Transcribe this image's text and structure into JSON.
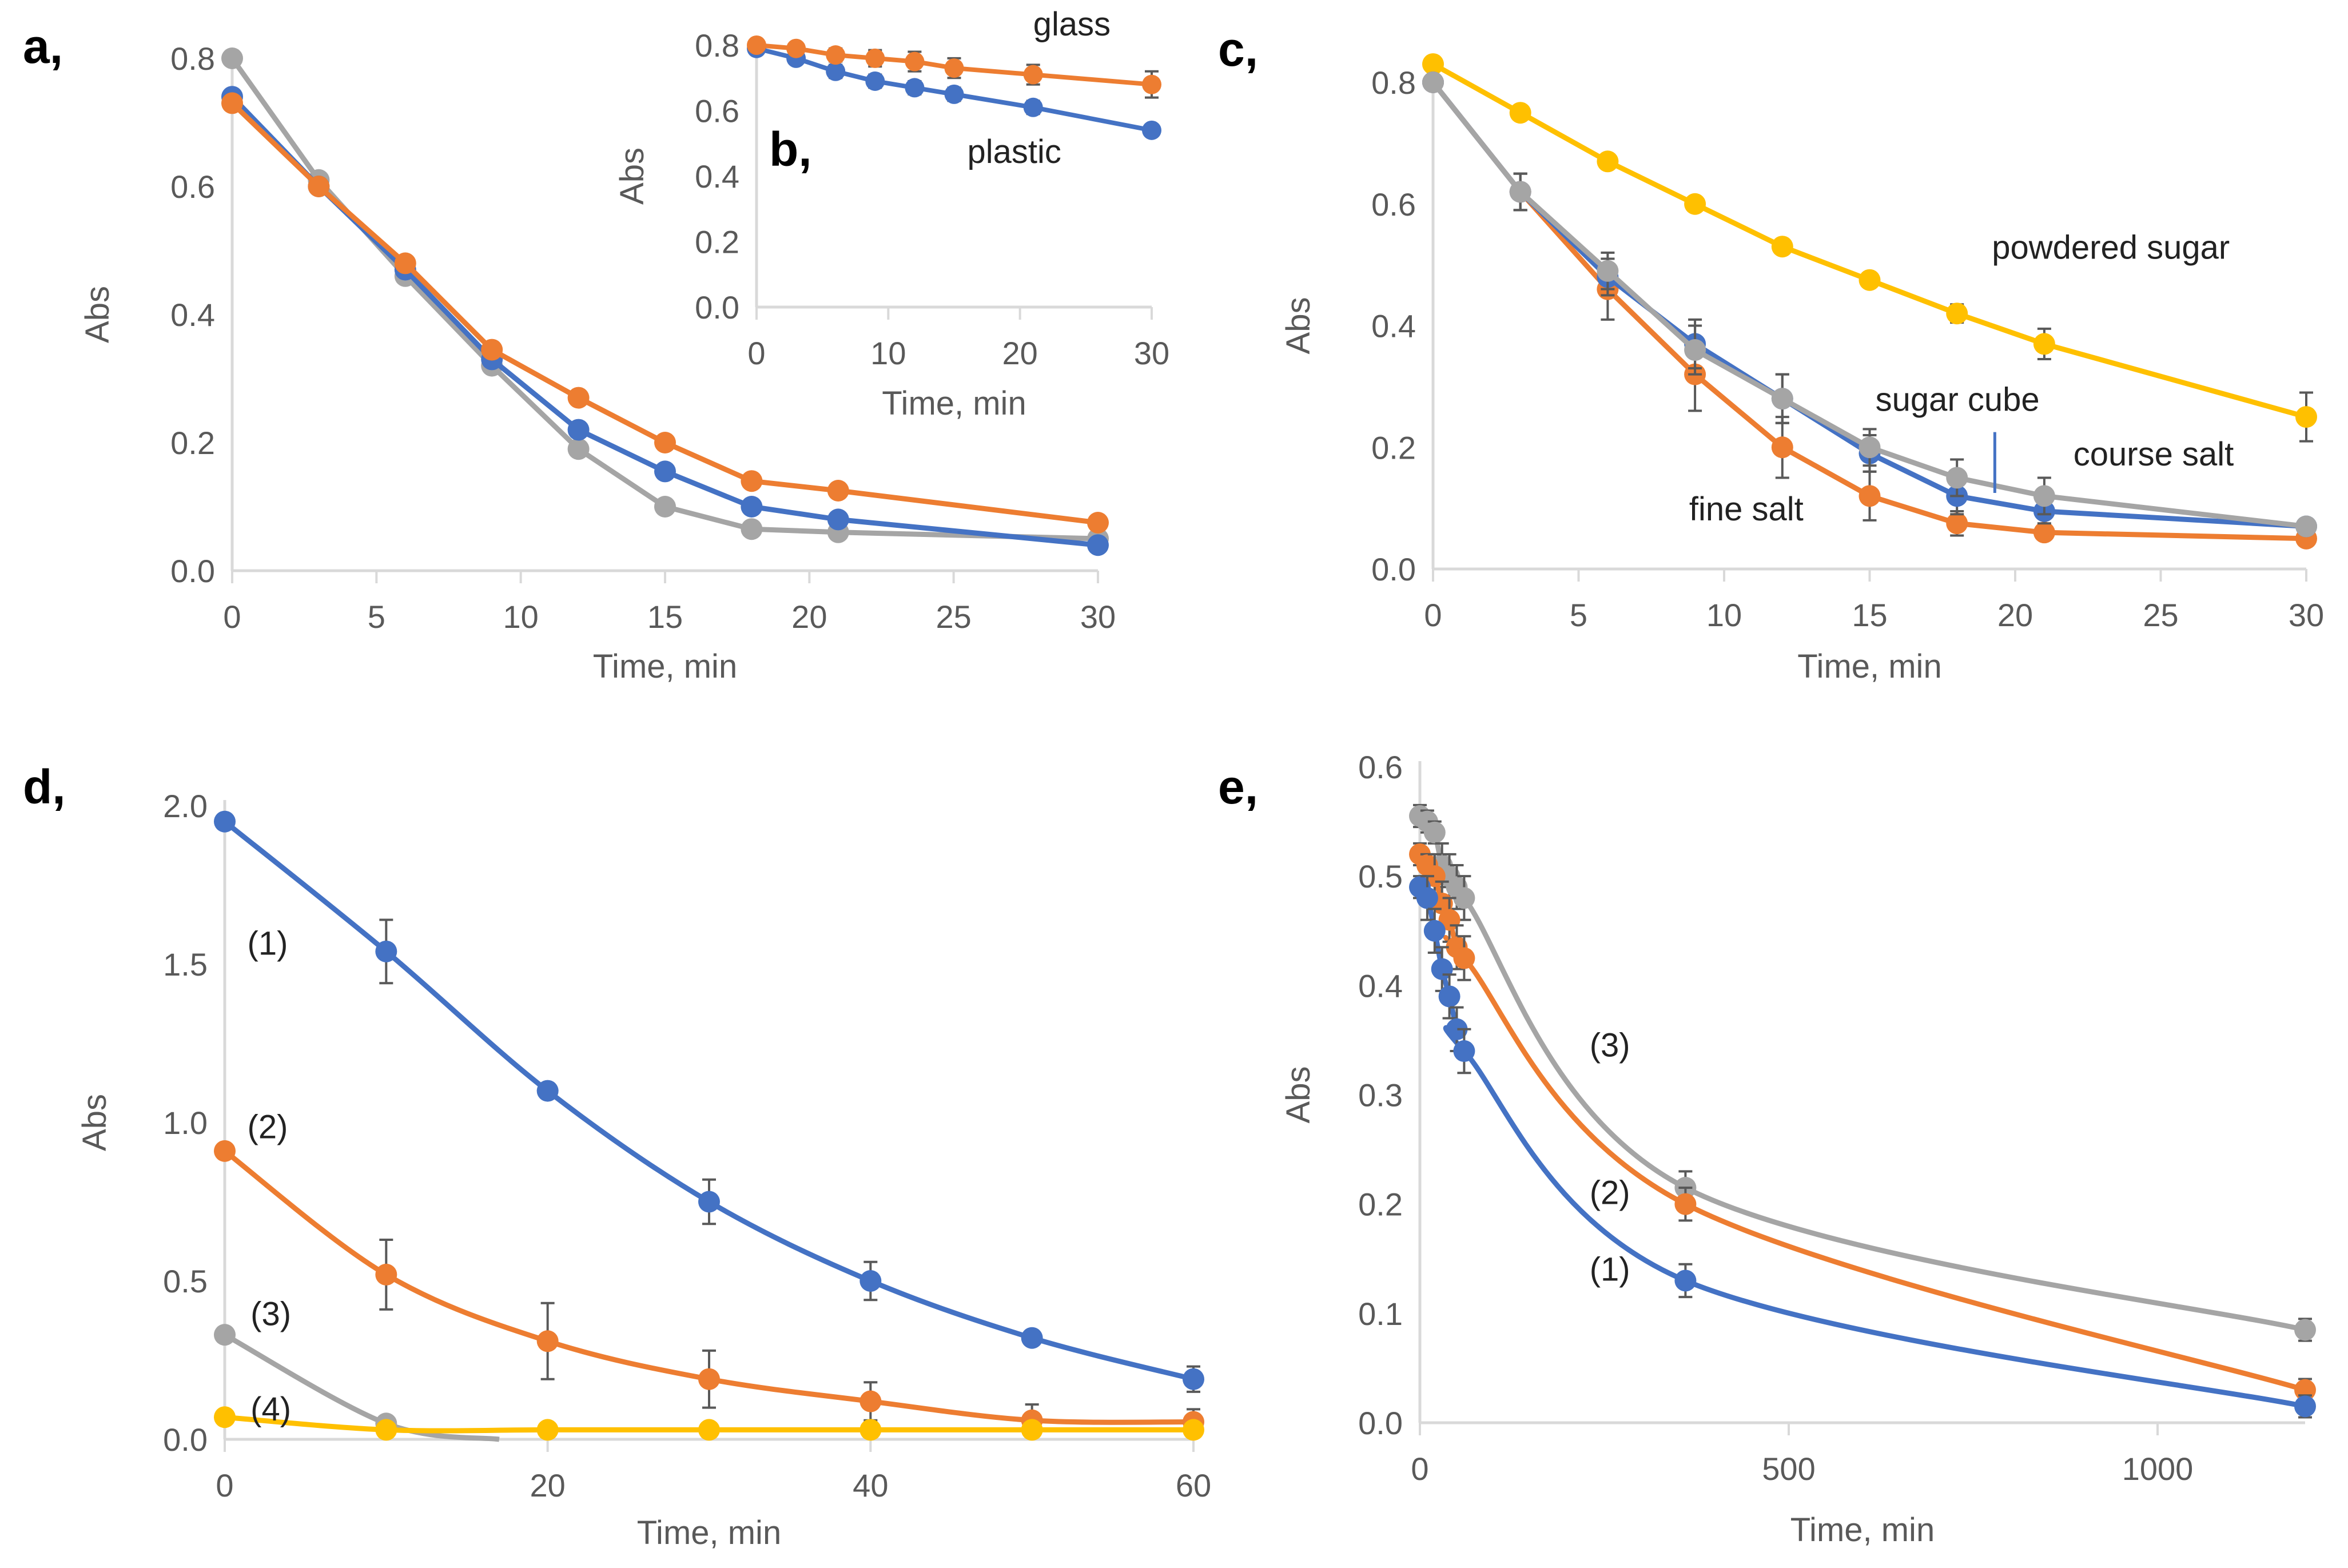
{
  "chart_data": [
    {
      "id": "a",
      "panel_label": "a,",
      "type": "line",
      "xlabel": "Time, min",
      "ylabel": "Abs",
      "xlim": [
        0,
        30
      ],
      "ylim": [
        0,
        0.8
      ],
      "xticks": [
        0,
        5,
        10,
        15,
        20,
        25,
        30
      ],
      "yticks": [
        0,
        0.2,
        0.4,
        0.6,
        0.8
      ],
      "ydec": 1,
      "smooth": false,
      "series": [
        {
          "name": "gray",
          "color": "#A5A5A5",
          "x": [
            0,
            3,
            6,
            9,
            12,
            15,
            18,
            21,
            30
          ],
          "y": [
            0.8,
            0.61,
            0.46,
            0.32,
            0.19,
            0.1,
            0.065,
            0.06,
            0.05
          ]
        },
        {
          "name": "blue",
          "color": "#4472C4",
          "x": [
            0,
            3,
            6,
            9,
            12,
            15,
            18,
            21,
            30
          ],
          "y": [
            0.74,
            0.6,
            0.47,
            0.33,
            0.22,
            0.155,
            0.1,
            0.08,
            0.04
          ]
        },
        {
          "name": "orange",
          "color": "#ED7D31",
          "x": [
            0,
            3,
            6,
            9,
            12,
            15,
            18,
            21,
            30
          ],
          "y": [
            0.73,
            0.6,
            0.48,
            0.345,
            0.27,
            0.2,
            0.14,
            0.125,
            0.075
          ]
        }
      ],
      "annotations": []
    },
    {
      "id": "b",
      "panel_label": "b,",
      "type": "line",
      "xlabel": "Time, min",
      "ylabel": "Abs",
      "xlim": [
        0,
        30
      ],
      "ylim": [
        0,
        0.8
      ],
      "xticks": [
        0,
        10,
        20,
        30
      ],
      "yticks": [
        0,
        0.2,
        0.4,
        0.6,
        0.8
      ],
      "ydec": 1,
      "smooth": false,
      "series": [
        {
          "name": "plastic",
          "color": "#4472C4",
          "x": [
            0,
            3,
            6,
            9,
            12,
            15,
            21,
            30
          ],
          "y": [
            0.79,
            0.76,
            0.72,
            0.69,
            0.67,
            0.65,
            0.61,
            0.54
          ],
          "err": [
            0.01,
            0.015,
            0.02,
            0.02,
            0.02,
            0.02,
            0.02,
            0.015
          ]
        },
        {
          "name": "glass",
          "color": "#ED7D31",
          "x": [
            0,
            3,
            6,
            9,
            12,
            15,
            21,
            30
          ],
          "y": [
            0.8,
            0.79,
            0.77,
            0.76,
            0.75,
            0.73,
            0.71,
            0.68
          ],
          "err": [
            0.01,
            0.01,
            0.02,
            0.025,
            0.03,
            0.03,
            0.03,
            0.04
          ]
        }
      ],
      "annotations": [
        {
          "text": "glass",
          "x": 21,
          "y": 0.83
        },
        {
          "text": "plastic",
          "x": 16,
          "y": 0.44
        }
      ]
    },
    {
      "id": "c",
      "panel_label": "c,",
      "type": "line",
      "xlabel": "Time, min",
      "ylabel": "Abs",
      "xlim": [
        0,
        30
      ],
      "ylim": [
        0,
        0.8
      ],
      "xticks": [
        0,
        5,
        10,
        15,
        20,
        25,
        30
      ],
      "yticks": [
        0,
        0.2,
        0.4,
        0.6,
        0.8
      ],
      "ydec": 1,
      "smooth": false,
      "series": [
        {
          "name": "powdered sugar",
          "color": "#FFC000",
          "x": [
            0,
            3,
            6,
            9,
            12,
            15,
            18,
            21,
            30
          ],
          "y": [
            0.83,
            0.75,
            0.67,
            0.6,
            0.53,
            0.475,
            0.42,
            0.37,
            0.25
          ],
          "err": [
            0.01,
            0.005,
            0.005,
            0.005,
            0.005,
            0.01,
            0.015,
            0.025,
            0.04
          ]
        },
        {
          "name": "fine salt",
          "color": "#ED7D31",
          "x": [
            0,
            3,
            6,
            9,
            12,
            15,
            18,
            21,
            30
          ],
          "y": [
            0.8,
            0.62,
            0.46,
            0.32,
            0.2,
            0.12,
            0.075,
            0.06,
            0.05
          ],
          "err": [
            0.01,
            0.03,
            0.05,
            0.06,
            0.05,
            0.04,
            0.02,
            0.01,
            0.01
          ]
        },
        {
          "name": "sugar cube",
          "color": "#4472C4",
          "x": [
            0,
            3,
            6,
            9,
            12,
            15,
            18,
            21,
            30
          ],
          "y": [
            0.8,
            0.62,
            0.48,
            0.37,
            0.28,
            0.19,
            0.12,
            0.095,
            0.07
          ],
          "err": [
            0.01,
            0.03,
            0.03,
            0.04,
            0.04,
            0.03,
            0.03,
            0.02,
            0.01
          ]
        },
        {
          "name": "course salt",
          "color": "#A5A5A5",
          "x": [
            0,
            3,
            6,
            9,
            12,
            15,
            18,
            21,
            30
          ],
          "y": [
            0.8,
            0.62,
            0.49,
            0.36,
            0.28,
            0.2,
            0.15,
            0.12,
            0.07
          ],
          "err": [
            0.01,
            0.03,
            0.03,
            0.04,
            0.04,
            0.03,
            0.03,
            0.03,
            0.01
          ]
        }
      ],
      "annotations": [
        {
          "text": "powdered sugar",
          "x": 19.2,
          "y": 0.51
        },
        {
          "text": "sugar cube",
          "x": 15.2,
          "y": 0.26
        },
        {
          "text": "course salt",
          "x": 22,
          "y": 0.17
        },
        {
          "text": "fine salt",
          "x": 8.8,
          "y": 0.08
        }
      ]
    },
    {
      "id": "d",
      "panel_label": "d,",
      "type": "line",
      "xlabel": "Time, min",
      "ylabel": "Abs",
      "xlim": [
        0,
        60
      ],
      "ylim": [
        0,
        2.0
      ],
      "xticks": [
        0,
        20,
        40,
        60
      ],
      "yticks": [
        0,
        0.5,
        1.0,
        1.5,
        2.0
      ],
      "ydec": 1,
      "smooth": true,
      "series": [
        {
          "name": "(1)",
          "color": "#4472C4",
          "x": [
            0,
            10,
            20,
            30,
            40,
            50,
            60
          ],
          "y": [
            1.95,
            1.54,
            1.1,
            0.75,
            0.5,
            0.32,
            0.19
          ],
          "err": [
            0.02,
            0.1,
            0.01,
            0.07,
            0.06,
            0.01,
            0.04
          ]
        },
        {
          "name": "(2)",
          "color": "#ED7D31",
          "x": [
            0,
            10,
            20,
            30,
            40,
            50,
            60
          ],
          "y": [
            0.91,
            0.52,
            0.31,
            0.19,
            0.12,
            0.06,
            0.055
          ],
          "err": [
            0.01,
            0.11,
            0.12,
            0.09,
            0.06,
            0.05,
            0.04
          ]
        },
        {
          "name": "(3)",
          "color": "#A5A5A5",
          "x": [
            0,
            10,
            17
          ],
          "y": [
            0.33,
            0.05,
            0.0
          ],
          "err": [
            0,
            0,
            0
          ],
          "markers": [
            0,
            1
          ]
        },
        {
          "name": "(4)",
          "color": "#FFC000",
          "x": [
            0,
            10,
            20,
            30,
            40,
            50,
            60
          ],
          "y": [
            0.07,
            0.03,
            0.03,
            0.03,
            0.03,
            0.03,
            0.03
          ],
          "err": [
            0,
            0,
            0,
            0,
            0,
            0,
            0
          ]
        }
      ],
      "annotations": [
        {
          "text": "(1)",
          "x": 1.4,
          "y": 1.53
        },
        {
          "text": "(2)",
          "x": 1.4,
          "y": 0.95
        },
        {
          "text": "(3)",
          "x": 1.6,
          "y": 0.36
        },
        {
          "text": "(4)",
          "x": 1.6,
          "y": 0.06
        }
      ]
    },
    {
      "id": "e",
      "panel_label": "e,",
      "type": "line",
      "xlabel": "Time, min",
      "ylabel": "Abs",
      "xlim": [
        0,
        1200
      ],
      "ylim": [
        0,
        0.6
      ],
      "xticks": [
        0,
        500,
        1000
      ],
      "yticks": [
        0,
        0.1,
        0.2,
        0.3,
        0.4,
        0.5,
        0.6
      ],
      "ydec": 1,
      "smooth": true,
      "series": [
        {
          "name": "(3)",
          "color": "#A5A5A5",
          "x": [
            0,
            10,
            20,
            30,
            40,
            50,
            60,
            360,
            1200
          ],
          "y": [
            0.555,
            0.55,
            0.54,
            0.51,
            0.5,
            0.49,
            0.48,
            0.215,
            0.085
          ],
          "err": [
            0.01,
            0.01,
            0.01,
            0.02,
            0.02,
            0.02,
            0.02,
            0.015,
            0.01
          ]
        },
        {
          "name": "(2)",
          "color": "#ED7D31",
          "x": [
            0,
            10,
            20,
            30,
            40,
            50,
            60,
            360,
            1200
          ],
          "y": [
            0.52,
            0.51,
            0.5,
            0.475,
            0.46,
            0.435,
            0.425,
            0.2,
            0.03
          ],
          "err": [
            0.01,
            0.01,
            0.02,
            0.02,
            0.02,
            0.02,
            0.02,
            0.015,
            0.01
          ]
        },
        {
          "name": "(1)",
          "color": "#4472C4",
          "x": [
            0,
            10,
            20,
            30,
            40,
            50,
            60,
            360,
            1200
          ],
          "y": [
            0.49,
            0.48,
            0.45,
            0.415,
            0.39,
            0.36,
            0.34,
            0.13,
            0.015
          ],
          "err": [
            0.01,
            0.02,
            0.02,
            0.02,
            0.02,
            0.02,
            0.02,
            0.015,
            0.01
          ]
        }
      ],
      "annotations": [
        {
          "text": "(3)",
          "x": 230,
          "y": 0.335
        },
        {
          "text": "(2)",
          "x": 230,
          "y": 0.2
        },
        {
          "text": "(1)",
          "x": 230,
          "y": 0.13
        }
      ]
    }
  ]
}
